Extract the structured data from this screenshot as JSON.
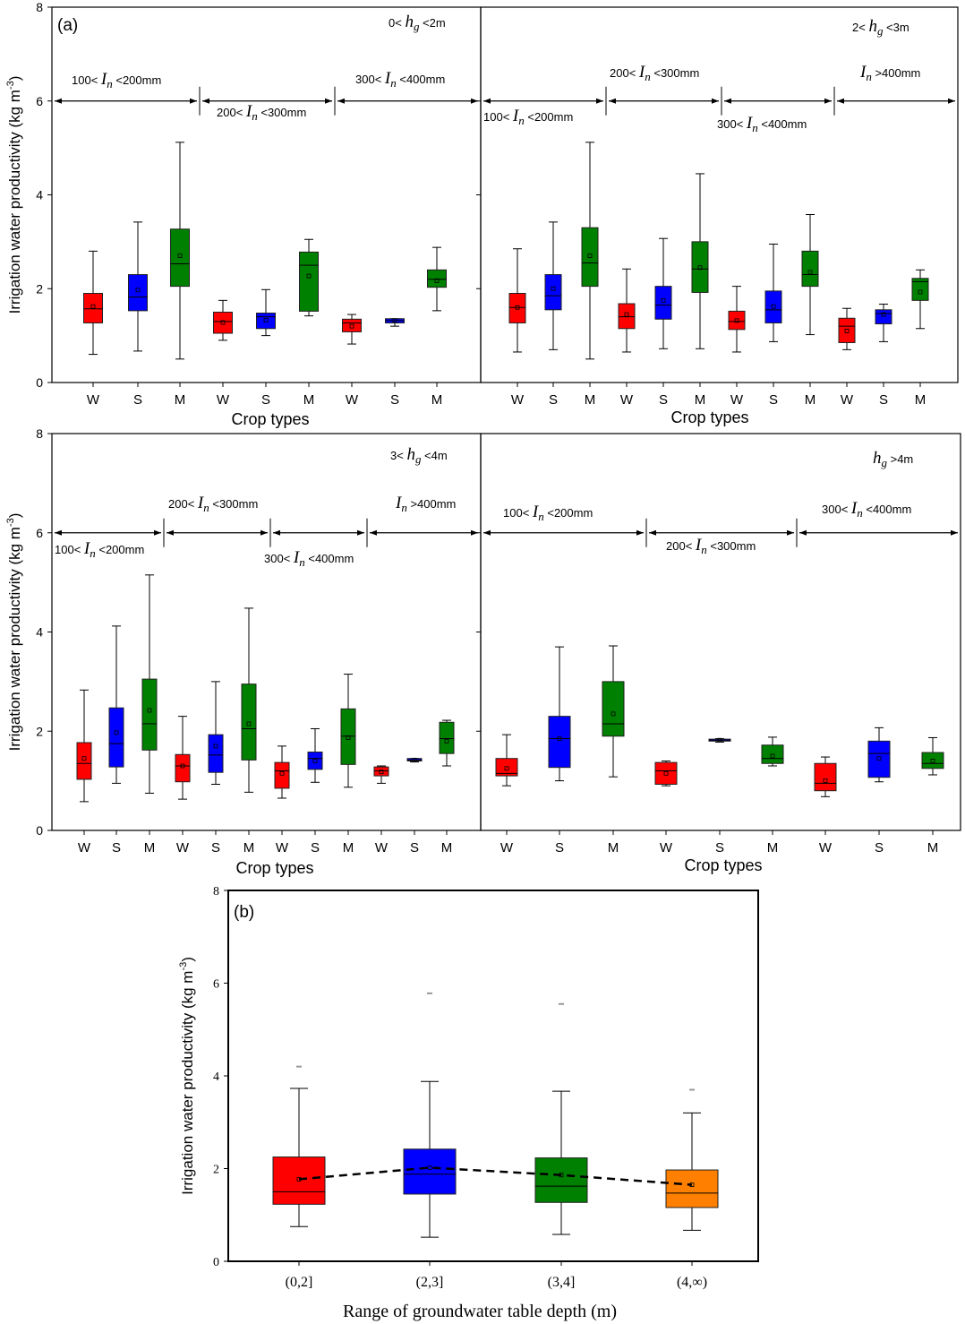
{
  "chart_data": [
    {
      "type": "box",
      "panel_label": "(a)",
      "title": "0< h_g <2m",
      "hg": {
        "lo": "0<",
        "var": "h",
        "sub": "g",
        "hi": "<2m"
      },
      "xlabel": "Crop types",
      "ylabel": "Irrigation water productivity (kg m-3)",
      "ylim": [
        0,
        8
      ],
      "yticks": [
        "0",
        "2",
        "4",
        "6",
        "8"
      ],
      "irrigation_ranges": [
        {
          "lo": "100<",
          "var": "I",
          "sub": "n",
          "hi": "<200mm"
        },
        {
          "lo": "200<",
          "var": "I",
          "sub": "n",
          "hi": "<300mm"
        },
        {
          "lo": "300<",
          "var": "I",
          "sub": "n",
          "hi": "<400mm"
        }
      ],
      "categories": [
        "W",
        "S",
        "M",
        "W",
        "S",
        "M",
        "W",
        "S",
        "M"
      ],
      "boxes": [
        {
          "min": 0.6,
          "q1": 1.27,
          "median": 1.57,
          "q3": 1.9,
          "max": 2.8,
          "mean": 1.62
        },
        {
          "min": 0.67,
          "q1": 1.53,
          "median": 1.82,
          "q3": 2.3,
          "max": 3.42,
          "mean": 1.97
        },
        {
          "min": 0.5,
          "q1": 2.05,
          "median": 2.53,
          "q3": 3.27,
          "max": 5.12,
          "mean": 2.7
        },
        {
          "min": 0.9,
          "q1": 1.05,
          "median": 1.3,
          "q3": 1.5,
          "max": 1.75,
          "mean": 1.28
        },
        {
          "min": 1.0,
          "q1": 1.15,
          "median": 1.4,
          "q3": 1.48,
          "max": 1.98,
          "mean": 1.33
        },
        {
          "min": 1.42,
          "q1": 1.52,
          "median": 2.5,
          "q3": 2.78,
          "max": 3.05,
          "mean": 2.27
        },
        {
          "min": 0.82,
          "q1": 1.08,
          "median": 1.27,
          "q3": 1.35,
          "max": 1.45,
          "mean": 1.2
        },
        {
          "min": 1.2,
          "q1": 1.27,
          "median": 1.32,
          "q3": 1.36,
          "max": 1.36,
          "mean": 1.32
        },
        {
          "min": 1.53,
          "q1": 2.03,
          "median": 2.2,
          "q3": 2.4,
          "max": 2.88,
          "mean": 2.17
        }
      ]
    },
    {
      "type": "box",
      "title": "2< h_g <3m",
      "hg": {
        "lo": "2<",
        "var": "h",
        "sub": "g",
        "hi": "<3m"
      },
      "xlabel": "Crop types",
      "ylim": [
        0,
        8
      ],
      "irrigation_ranges": [
        {
          "lo": "100<",
          "var": "I",
          "sub": "n",
          "hi": "<200mm"
        },
        {
          "lo": "200<",
          "var": "I",
          "sub": "n",
          "hi": "<300mm"
        },
        {
          "lo": "300<",
          "var": "I",
          "sub": "n",
          "hi": "<400mm"
        },
        {
          "lo": "",
          "var": "I",
          "sub": "n",
          "hi": ">400mm"
        }
      ],
      "categories": [
        "W",
        "S",
        "M",
        "W",
        "S",
        "M",
        "W",
        "S",
        "M",
        "W",
        "S",
        "M"
      ],
      "boxes": [
        {
          "min": 0.65,
          "q1": 1.27,
          "median": 1.6,
          "q3": 1.9,
          "max": 2.85,
          "mean": 1.6
        },
        {
          "min": 0.7,
          "q1": 1.55,
          "median": 1.85,
          "q3": 2.3,
          "max": 3.42,
          "mean": 2.0
        },
        {
          "min": 0.5,
          "q1": 2.05,
          "median": 2.55,
          "q3": 3.3,
          "max": 5.12,
          "mean": 2.7
        },
        {
          "min": 0.65,
          "q1": 1.15,
          "median": 1.4,
          "q3": 1.68,
          "max": 2.42,
          "mean": 1.45
        },
        {
          "min": 0.72,
          "q1": 1.35,
          "median": 1.65,
          "q3": 2.05,
          "max": 3.07,
          "mean": 1.75
        },
        {
          "min": 0.72,
          "q1": 1.92,
          "median": 2.42,
          "q3": 3.0,
          "max": 4.45,
          "mean": 2.45
        },
        {
          "min": 0.65,
          "q1": 1.13,
          "median": 1.3,
          "q3": 1.52,
          "max": 2.05,
          "mean": 1.32
        },
        {
          "min": 0.87,
          "q1": 1.27,
          "median": 1.55,
          "q3": 1.95,
          "max": 2.95,
          "mean": 1.62
        },
        {
          "min": 1.02,
          "q1": 2.05,
          "median": 2.3,
          "q3": 2.8,
          "max": 3.58,
          "mean": 2.35
        },
        {
          "min": 0.7,
          "q1": 0.85,
          "median": 1.2,
          "q3": 1.37,
          "max": 1.58,
          "mean": 1.1
        },
        {
          "min": 0.87,
          "q1": 1.25,
          "median": 1.47,
          "q3": 1.55,
          "max": 1.67,
          "mean": 1.45
        },
        {
          "min": 1.15,
          "q1": 1.75,
          "median": 2.15,
          "q3": 2.22,
          "max": 2.4,
          "mean": 1.93
        }
      ]
    },
    {
      "type": "box",
      "title": "3< h_g <4m",
      "hg": {
        "lo": "3<",
        "var": "h",
        "sub": "g",
        "hi": "<4m"
      },
      "xlabel": "Crop types",
      "ylabel": "Irrigation water productivity (kg m-3)",
      "ylim": [
        0,
        8
      ],
      "yticks": [
        "0",
        "2",
        "4",
        "6",
        "8"
      ],
      "irrigation_ranges": [
        {
          "lo": "100<",
          "var": "I",
          "sub": "n",
          "hi": "<200mm"
        },
        {
          "lo": "200<",
          "var": "I",
          "sub": "n",
          "hi": "<300mm"
        },
        {
          "lo": "300<",
          "var": "I",
          "sub": "n",
          "hi": "<400mm"
        },
        {
          "lo": "",
          "var": "I",
          "sub": "n",
          "hi": ">400mm"
        }
      ],
      "categories": [
        "W",
        "S",
        "M",
        "W",
        "S",
        "M",
        "W",
        "S",
        "M",
        "W",
        "S",
        "M"
      ],
      "boxes": [
        {
          "min": 0.58,
          "q1": 1.03,
          "median": 1.35,
          "q3": 1.77,
          "max": 2.83,
          "mean": 1.45
        },
        {
          "min": 0.95,
          "q1": 1.28,
          "median": 1.75,
          "q3": 2.47,
          "max": 4.12,
          "mean": 1.97
        },
        {
          "min": 0.75,
          "q1": 1.62,
          "median": 2.15,
          "q3": 3.05,
          "max": 5.15,
          "mean": 2.42
        },
        {
          "min": 0.63,
          "q1": 0.98,
          "median": 1.3,
          "q3": 1.53,
          "max": 2.3,
          "mean": 1.3
        },
        {
          "min": 0.93,
          "q1": 1.17,
          "median": 1.52,
          "q3": 1.93,
          "max": 3.0,
          "mean": 1.7
        },
        {
          "min": 0.77,
          "q1": 1.42,
          "median": 2.05,
          "q3": 2.95,
          "max": 4.48,
          "mean": 2.15
        },
        {
          "min": 0.65,
          "q1": 0.85,
          "median": 1.2,
          "q3": 1.37,
          "max": 1.7,
          "mean": 1.15
        },
        {
          "min": 0.97,
          "q1": 1.23,
          "median": 1.45,
          "q3": 1.58,
          "max": 2.05,
          "mean": 1.4
        },
        {
          "min": 0.87,
          "q1": 1.33,
          "median": 1.9,
          "q3": 2.45,
          "max": 3.15,
          "mean": 1.87
        },
        {
          "min": 0.95,
          "q1": 1.1,
          "median": 1.2,
          "q3": 1.28,
          "max": 1.3,
          "mean": 1.18
        },
        {
          "min": 1.38,
          "q1": 1.4,
          "median": 1.42,
          "q3": 1.45,
          "max": 1.45,
          "mean": 1.42
        },
        {
          "min": 1.3,
          "q1": 1.55,
          "median": 1.85,
          "q3": 2.18,
          "max": 2.22,
          "mean": 1.8
        }
      ]
    },
    {
      "type": "box",
      "title": "h_g >4m",
      "hg": {
        "lo": "",
        "var": "h",
        "sub": "g",
        "hi": ">4m"
      },
      "xlabel": "Crop types",
      "ylim": [
        0,
        8
      ],
      "irrigation_ranges": [
        {
          "lo": "100<",
          "var": "I",
          "sub": "n",
          "hi": "<200mm"
        },
        {
          "lo": "200<",
          "var": "I",
          "sub": "n",
          "hi": "<300mm"
        },
        {
          "lo": "300<",
          "var": "I",
          "sub": "n",
          "hi": "<400mm"
        }
      ],
      "categories": [
        "W",
        "S",
        "M",
        "W",
        "S",
        "M",
        "W",
        "S",
        "M"
      ],
      "boxes": [
        {
          "min": 0.9,
          "q1": 1.1,
          "median": 1.15,
          "q3": 1.45,
          "max": 1.93,
          "mean": 1.25
        },
        {
          "min": 1.0,
          "q1": 1.27,
          "median": 1.85,
          "q3": 2.3,
          "max": 3.7,
          "mean": 1.85
        },
        {
          "min": 1.08,
          "q1": 1.9,
          "median": 2.15,
          "q3": 3.0,
          "max": 3.72,
          "mean": 2.35
        },
        {
          "min": 0.9,
          "q1": 0.93,
          "median": 1.2,
          "q3": 1.37,
          "max": 1.4,
          "mean": 1.15
        },
        {
          "min": 1.78,
          "q1": 1.8,
          "median": 1.82,
          "q3": 1.84,
          "max": 1.85,
          "mean": 1.82
        },
        {
          "min": 1.3,
          "q1": 1.35,
          "median": 1.45,
          "q3": 1.72,
          "max": 1.88,
          "mean": 1.5
        },
        {
          "min": 0.68,
          "q1": 0.8,
          "median": 0.95,
          "q3": 1.35,
          "max": 1.48,
          "mean": 1.0
        },
        {
          "min": 0.98,
          "q1": 1.07,
          "median": 1.55,
          "q3": 1.8,
          "max": 2.07,
          "mean": 1.45
        },
        {
          "min": 1.12,
          "q1": 1.25,
          "median": 1.35,
          "q3": 1.57,
          "max": 1.87,
          "mean": 1.4
        }
      ]
    },
    {
      "type": "box",
      "panel_label": "(b)",
      "xlabel": "Range of groundwater table depth (m)",
      "ylabel": "Irrigation water productivity (kg m-3)",
      "ylim": [
        0,
        8
      ],
      "yticks": [
        "0",
        "2",
        "4",
        "6",
        "8"
      ],
      "categories": [
        "(0,2]",
        "(2,3]",
        "(3,4]",
        "(4,∞)"
      ],
      "mean_line": "dashed",
      "boxes": [
        {
          "min": 0.75,
          "q1": 1.23,
          "median": 1.5,
          "q3": 2.25,
          "max": 3.73,
          "mean": 1.77,
          "outlier_max": 4.2
        },
        {
          "min": 0.52,
          "q1": 1.45,
          "median": 1.88,
          "q3": 2.42,
          "max": 3.88,
          "mean": 2.02,
          "outlier_max": 5.78
        },
        {
          "min": 0.58,
          "q1": 1.27,
          "median": 1.62,
          "q3": 2.23,
          "max": 3.67,
          "mean": 1.86,
          "outlier_max": 5.55
        },
        {
          "min": 0.67,
          "q1": 1.16,
          "median": 1.47,
          "q3": 1.97,
          "max": 3.2,
          "mean": 1.65,
          "outlier_max": 3.7
        }
      ]
    }
  ],
  "colors": {
    "W": "#ff0000",
    "S": "#0000ff",
    "M": "#008000",
    "b": [
      "#ff0000",
      "#0000ff",
      "#008000",
      "#ff8000"
    ]
  }
}
